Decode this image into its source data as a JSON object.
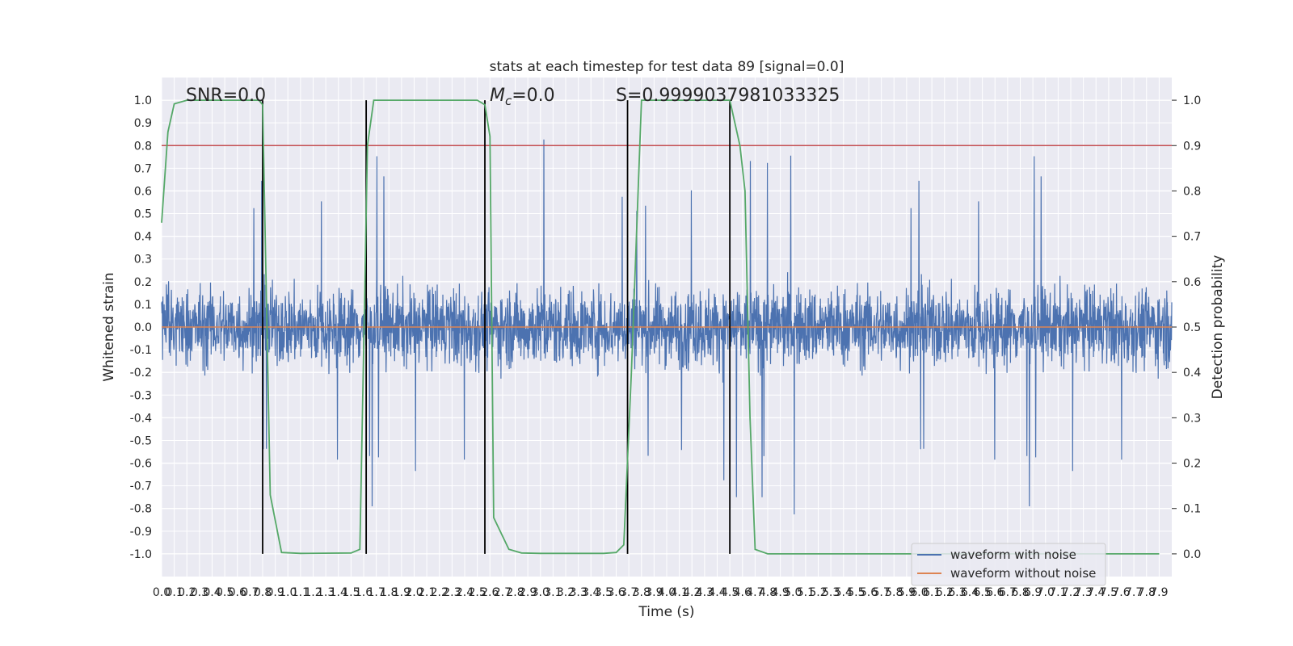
{
  "chart_data": {
    "type": "line",
    "title": "stats at each timestep for test data 89 [signal=0.0]",
    "xlabel": "Time (s)",
    "ylabel_left": "Whitened strain",
    "ylabel_right": "Detection probability",
    "xlim": [
      0.0,
      8.0
    ],
    "ylim_left": [
      -1.1,
      1.1
    ],
    "ylim_right": [
      -0.05,
      1.05
    ],
    "x_tick_step": 0.1,
    "y_left_ticks": [
      -1.0,
      -0.9,
      -0.8,
      -0.7,
      -0.6,
      -0.5,
      -0.4,
      -0.3,
      -0.2,
      -0.1,
      0.0,
      0.1,
      0.2,
      0.3,
      0.4,
      0.5,
      0.6,
      0.7,
      0.8,
      0.9,
      1.0
    ],
    "y_right_ticks": [
      0.0,
      0.1,
      0.2,
      0.3,
      0.4,
      0.5,
      0.6,
      0.7,
      0.8,
      0.9,
      1.0
    ],
    "grid": true,
    "legend_position": "lower-right",
    "annotations": {
      "snr": "SNR=0.0",
      "mc": "=0.0",
      "mc_symbol": "M",
      "mc_subscript": "c",
      "s": "S=0.9999037981033325"
    },
    "series": [
      {
        "name": "waveform with noise",
        "color": "#4c72b0",
        "description": "dense noisy strain, mostly within ±0.45, peaks to about +1.0 and -0.95"
      },
      {
        "name": "waveform without noise",
        "color": "#dd8452",
        "values_constant": 0.0
      },
      {
        "name": "",
        "color": "#55a868",
        "axis": "right",
        "x": [
          0.0,
          0.05,
          0.1,
          0.2,
          0.3,
          0.5,
          0.7,
          0.77,
          0.8,
          0.86,
          0.95,
          1.1,
          1.5,
          1.57,
          1.6,
          1.63,
          1.68,
          1.76,
          1.8,
          2.0,
          2.3,
          2.5,
          2.56,
          2.6,
          2.63,
          2.75,
          2.85,
          3.0,
          3.2,
          3.5,
          3.6,
          3.66,
          3.72,
          3.8,
          4.0,
          4.4,
          4.5,
          4.58,
          4.62,
          4.66,
          4.7,
          4.8,
          5.0,
          6.0,
          7.0,
          7.9
        ],
        "y": [
          0.73,
          0.93,
          0.992,
          1.0,
          1.0,
          1.0,
          1.0,
          1.0,
          0.99,
          0.13,
          0.003,
          0.001,
          0.002,
          0.01,
          0.45,
          0.9,
          1.0,
          1.0,
          1.0,
          1.0,
          1.0,
          1.0,
          0.99,
          0.92,
          0.08,
          0.01,
          0.002,
          0.001,
          0.001,
          0.001,
          0.003,
          0.02,
          0.4,
          1.0,
          1.0,
          1.0,
          1.0,
          0.9,
          0.8,
          0.3,
          0.01,
          0.0,
          0.0,
          0.0,
          0.0,
          0.0
        ]
      },
      {
        "name": "",
        "color": "#c44e52",
        "axis": "right",
        "values_constant": 0.9
      }
    ],
    "vertical_lines_x": [
      0.8,
      1.62,
      2.56,
      3.69,
      4.5
    ]
  }
}
